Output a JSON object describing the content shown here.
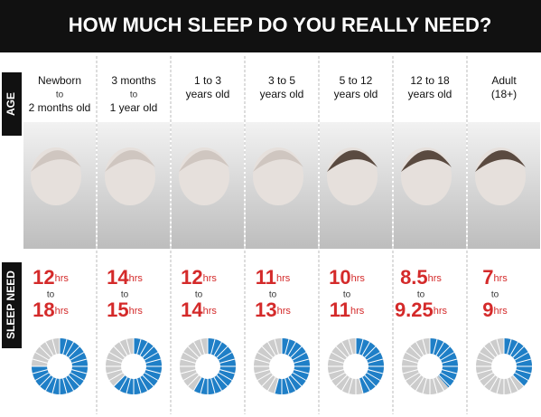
{
  "title": "HOW MUCH SLEEP DO YOU REALLY NEED?",
  "side_labels": [
    "AGE",
    "SLEEP NEED"
  ],
  "groups": [
    {
      "age": [
        "Newborn",
        "to",
        "2 months old"
      ],
      "min": 12,
      "max": 18,
      "unit_min": "hrs",
      "to": "to",
      "unit_max": "hrs",
      "lim": [
        0,
        24
      ]
    },
    {
      "age": [
        "3 months",
        "to",
        "1 year old"
      ],
      "min": 14,
      "max": 15,
      "unit_min": "hrs",
      "to": "to",
      "unit_max": "hrs",
      "lim": [
        0,
        24
      ]
    },
    {
      "age": [
        "1 to 3",
        "years old"
      ],
      "min": 12,
      "max": 14,
      "unit_min": "hrs",
      "to": "to",
      "unit_max": "hrs",
      "lim": [
        0,
        24
      ]
    },
    {
      "age": [
        "3 to 5",
        "years old"
      ],
      "min": 11,
      "max": 13,
      "unit_min": "hrs",
      "to": "to",
      "unit_max": "hrs",
      "lim": [
        0,
        24
      ]
    },
    {
      "age": [
        "5 to 12",
        "years old"
      ],
      "min": 10,
      "max": 11,
      "unit_min": "hrs",
      "to": "to",
      "unit_max": "hrs",
      "lim": [
        0,
        24
      ]
    },
    {
      "age": [
        "12 to 18",
        "years old"
      ],
      "min": 8.5,
      "max": 9.25,
      "unit_min": "hrs",
      "to": "to",
      "unit_max": "hrs",
      "lim": [
        0,
        24
      ]
    },
    {
      "age": [
        "Adult",
        "(18+)"
      ],
      "min": 7,
      "max": 9,
      "unit_min": "hrs",
      "to": "to",
      "unit_max": "hrs",
      "lim": [
        0,
        24
      ]
    }
  ],
  "colors": {
    "filled": "#1f7fc7",
    "empty": "#cccccc",
    "number": "#d42a2a"
  }
}
